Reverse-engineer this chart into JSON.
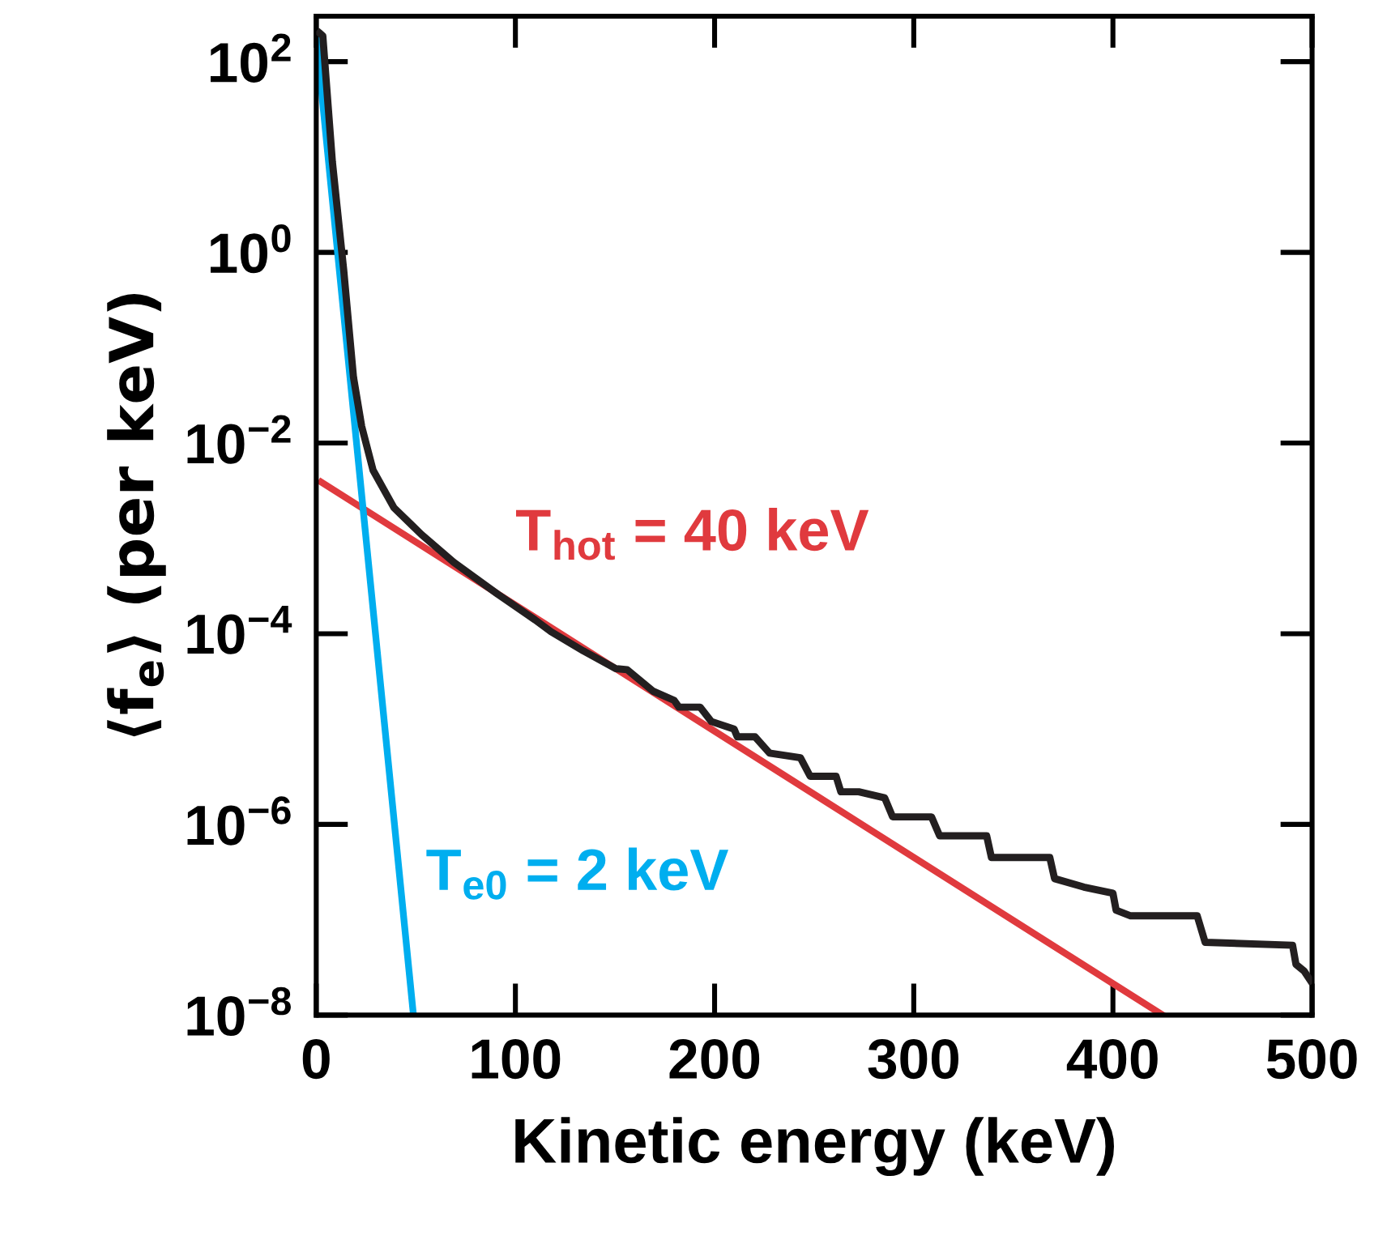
{
  "chart_data": {
    "type": "line",
    "xlabel": "Kinetic energy (keV)",
    "ylabel": "⟨f$_{e}$⟩ (per keV)",
    "log": "y",
    "xlim": [
      0,
      500
    ],
    "xticks": [
      0,
      100,
      200,
      300,
      400,
      500
    ],
    "ylim": [
      1e-08,
      300
    ],
    "yticks": [
      {
        "value": 100,
        "label": "10$^{2}$"
      },
      {
        "value": 1,
        "label": "10$^{0}$"
      },
      {
        "value": 0.01,
        "label": "10$^{−2}$"
      },
      {
        "value": 0.0001,
        "label": "10$^{−4}$"
      },
      {
        "value": 1e-06,
        "label": "10$^{−6}$"
      },
      {
        "value": 1e-08,
        "label": "10$^{−8}$"
      }
    ],
    "grid": false,
    "legend": false,
    "marker": "none",
    "line_style": "solid",
    "series": [
      {
        "color": "#231f20",
        "x": [
          1.6,
          3.3,
          8.1,
          13.8,
          18.7,
          22.8,
          28.5,
          39.0,
          52.8,
          69.1,
          91.1,
          109.8,
          117.9,
          134.1,
          150.4,
          156.1,
          169.1,
          179.7,
          182.1,
          192.7,
          198.4,
          209.8,
          211.4,
          220.3,
          227.6,
          243.1,
          248.0,
          261.0,
          263.4,
          272.4,
          285.4,
          289.4,
          308.9,
          313.0,
          336.6,
          339.0,
          368.3,
          370.7,
          385.4,
          400.0,
          401.6,
          408.9,
          442.3,
          446.3,
          490.2,
          491.9,
          496.0,
          499.2
        ],
        "values": [
          200,
          186,
          8.9,
          0.65,
          0.049,
          0.015,
          0.0052,
          0.0021,
          0.0011,
          0.00056,
          0.00026,
          0.00014,
          0.000105,
          6.6e-05,
          4.3e-05,
          4.2e-05,
          2.5e-05,
          2e-05,
          1.7e-05,
          1.7e-05,
          1.2e-05,
          1e-05,
          8.3e-06,
          8.3e-06,
          5.6e-06,
          5e-06,
          3.2e-06,
          3.2e-06,
          2.2e-06,
          2.2e-06,
          1.9e-06,
          1.2e-06,
          1.2e-06,
          7.6e-07,
          7.6e-07,
          4.5e-07,
          4.5e-07,
          2.7e-07,
          2.2e-07,
          1.9e-07,
          1.26e-07,
          1.1e-07,
          1.1e-07,
          5.8e-08,
          5.4e-08,
          3.4e-08,
          2.9e-08,
          2.3e-08
        ]
      },
      {
        "name": "T$_{hot}$ = 40 keV",
        "color": "#e03a3e",
        "x": [
          2.5,
          425
        ],
        "values": [
          0.0039,
          1e-08
        ]
      },
      {
        "name": "T$_{e0}$ = 2 keV",
        "color": "#00aeef",
        "x": [
          0,
          48.8
        ],
        "values": [
          178,
          1e-08
        ]
      }
    ]
  }
}
